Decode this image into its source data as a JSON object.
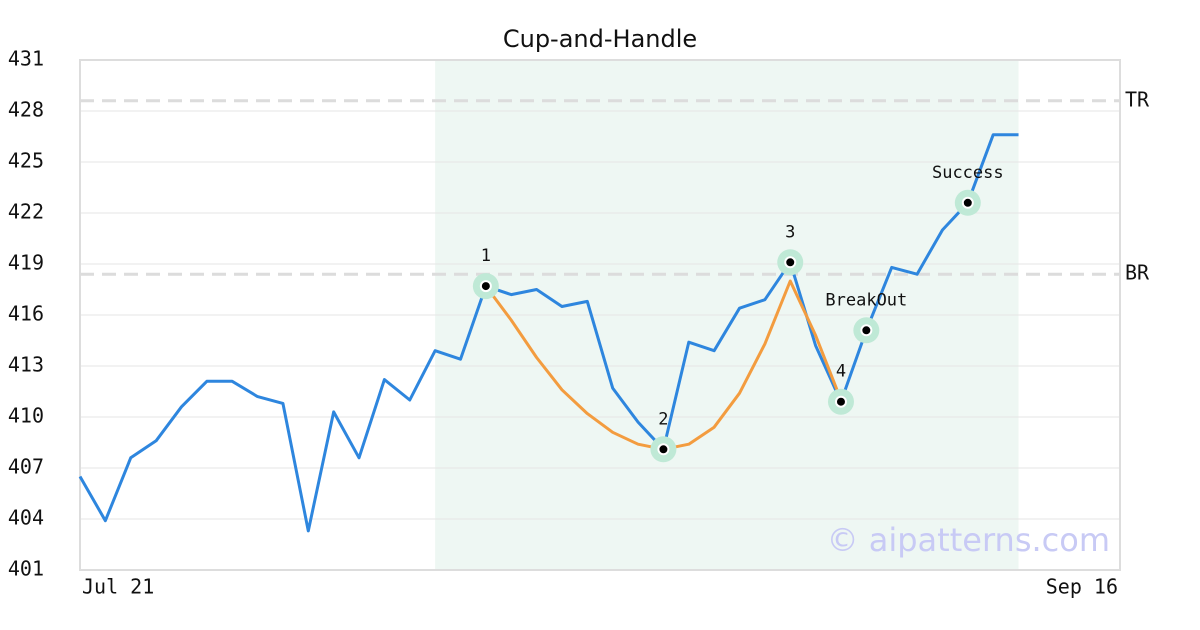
{
  "chart_data": {
    "type": "line",
    "title": "Cup-and-Handle",
    "xlim": [
      0,
      41
    ],
    "xticks": [
      {
        "value": 0,
        "label": "Jul 21"
      },
      {
        "value": 41,
        "label": "Sep 16"
      }
    ],
    "ylim": [
      401,
      431
    ],
    "yticks": [
      401,
      404,
      407,
      410,
      413,
      416,
      419,
      422,
      425,
      428,
      431
    ],
    "grid": true,
    "shaded_range": [
      14,
      37
    ],
    "shade_color": "#eef7f3",
    "series": [
      {
        "color": "#2e86de",
        "x": [
          0,
          1,
          2,
          3,
          4,
          5,
          6,
          7,
          8,
          9,
          10,
          11,
          12,
          13,
          14,
          15,
          16,
          17,
          18,
          19,
          20,
          21,
          22,
          23,
          24,
          25,
          26,
          27,
          28,
          29,
          30,
          31,
          32,
          33,
          34,
          35,
          36,
          37
        ],
        "values": [
          406.5,
          403.9,
          407.6,
          408.6,
          410.6,
          412.1,
          412.1,
          411.2,
          410.8,
          403.3,
          410.3,
          407.6,
          412.2,
          411.0,
          413.9,
          413.4,
          417.7,
          417.2,
          417.5,
          416.5,
          416.8,
          411.7,
          409.7,
          408.1,
          414.4,
          413.9,
          416.4,
          416.9,
          419.1,
          414.2,
          410.9,
          415.1,
          418.8,
          418.4,
          421.0,
          422.6,
          426.6,
          426.6
        ]
      },
      {
        "color": "#f39c3f",
        "x": [
          16,
          17,
          18,
          19,
          20,
          21,
          22,
          23,
          24,
          25,
          26,
          27,
          28,
          29,
          30
        ],
        "values": [
          417.7,
          415.7,
          413.5,
          411.6,
          410.2,
          409.1,
          408.4,
          408.1,
          408.4,
          409.4,
          411.4,
          414.3,
          418.0,
          414.8,
          411.0
        ]
      }
    ],
    "levels": [
      {
        "label": "TR",
        "value": 428.6
      },
      {
        "label": "BR",
        "value": 418.4
      }
    ],
    "annotations": [
      {
        "label": "1",
        "x": 16,
        "y": 417.7
      },
      {
        "label": "2",
        "x": 23,
        "y": 408.1
      },
      {
        "label": "3",
        "x": 28,
        "y": 419.1
      },
      {
        "label": "4",
        "x": 30,
        "y": 410.9
      },
      {
        "label": "BreakOut",
        "x": 31,
        "y": 415.1
      },
      {
        "label": "Success",
        "x": 35,
        "y": 422.6
      }
    ],
    "watermark": "© aipatterns.com"
  }
}
